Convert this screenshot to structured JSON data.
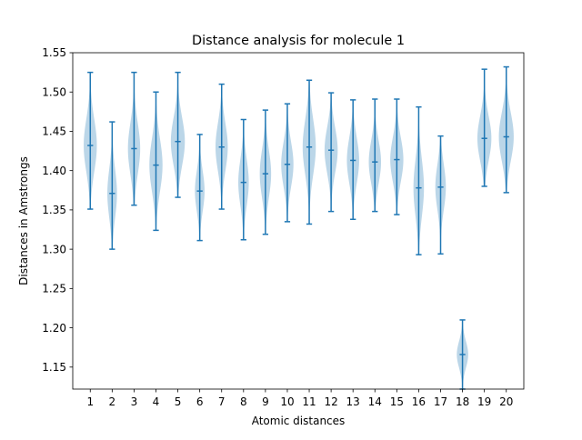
{
  "chart_data": {
    "type": "violin",
    "title": "Distance analysis for molecule 1",
    "xlabel": "Atomic distances",
    "ylabel": "Distances in Amstrongs",
    "categories": [
      "1",
      "2",
      "3",
      "4",
      "5",
      "6",
      "7",
      "8",
      "9",
      "10",
      "11",
      "12",
      "13",
      "14",
      "15",
      "16",
      "17",
      "18",
      "19",
      "20"
    ],
    "ylim": [
      1.122,
      1.55
    ],
    "xlim": [
      0.2,
      20.8
    ],
    "yticks": [
      "1.15",
      "1.20",
      "1.25",
      "1.30",
      "1.35",
      "1.40",
      "1.45",
      "1.50",
      "1.55"
    ],
    "grid": false,
    "series": [
      {
        "min": [
          1.351,
          1.3,
          1.356,
          1.324,
          1.366,
          1.311,
          1.351,
          1.312,
          1.319,
          1.335,
          1.332,
          1.348,
          1.338,
          1.348,
          1.344,
          1.293,
          1.294,
          1.122,
          1.38,
          1.372
        ],
        "max": [
          1.525,
          1.462,
          1.525,
          1.5,
          1.525,
          1.446,
          1.51,
          1.465,
          1.477,
          1.485,
          1.515,
          1.499,
          1.49,
          1.491,
          1.491,
          1.481,
          1.444,
          1.21,
          1.529,
          1.532
        ],
        "median": [
          1.432,
          1.371,
          1.428,
          1.407,
          1.437,
          1.374,
          1.43,
          1.385,
          1.396,
          1.408,
          1.43,
          1.426,
          1.413,
          1.411,
          1.414,
          1.378,
          1.379,
          1.166,
          1.441,
          1.443
        ],
        "spread": [
          0.3,
          0.22,
          0.28,
          0.3,
          0.32,
          0.22,
          0.28,
          0.24,
          0.26,
          0.28,
          0.3,
          0.3,
          0.28,
          0.28,
          0.3,
          0.24,
          0.24,
          0.26,
          0.32,
          0.34
        ]
      }
    ],
    "colors": {
      "line": "#1f77b4",
      "body": "#1f77b4",
      "body_opacity": 0.3
    }
  }
}
